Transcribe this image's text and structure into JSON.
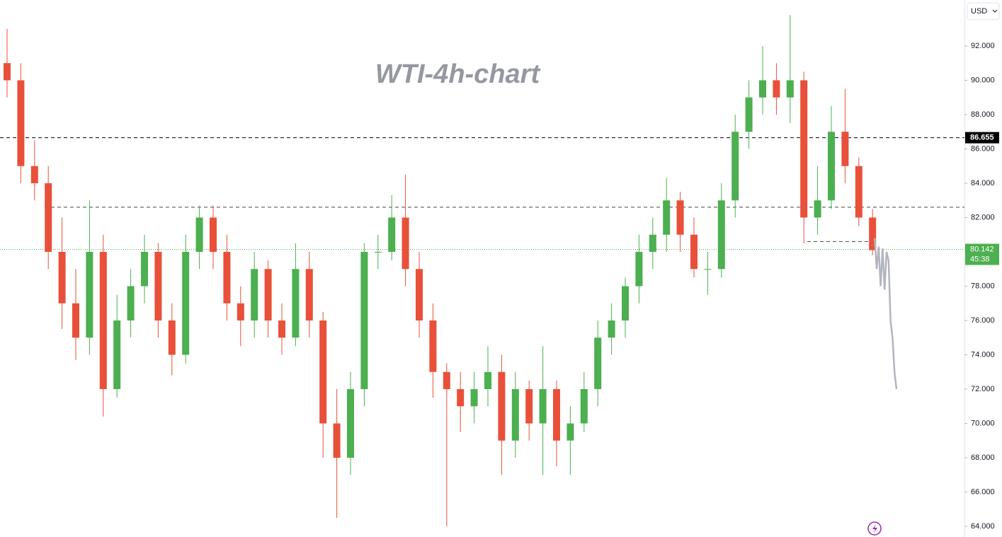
{
  "chart_data": {
    "type": "candlestick",
    "title": "WTI-4h-chart",
    "currency": "USD",
    "candles": {
      "open": [
        91,
        90,
        85,
        84,
        80,
        77,
        75,
        80,
        72,
        76,
        78,
        80,
        76,
        74,
        80,
        82,
        80,
        77,
        76,
        79,
        76,
        75,
        79,
        76,
        70,
        68,
        72,
        80,
        80,
        82,
        79,
        76,
        73,
        72,
        71,
        72,
        73,
        69,
        72,
        70,
        72,
        69,
        70,
        72,
        75,
        76,
        78,
        80,
        81,
        83,
        81,
        79,
        79,
        83,
        87,
        89,
        90,
        89,
        90,
        82,
        83,
        87,
        85,
        82
      ],
      "high": [
        93,
        91,
        86.5,
        85,
        82,
        79,
        83,
        81,
        77.5,
        79,
        81,
        80.5,
        77,
        81,
        82.7,
        82.7,
        81,
        78,
        80,
        79.5,
        77,
        80.5,
        80,
        76.5,
        72,
        73,
        80.5,
        81,
        83.3,
        84.5,
        80,
        77,
        73.5,
        73,
        73,
        74.5,
        74,
        73,
        72.5,
        74.5,
        72.5,
        71,
        73,
        76,
        77,
        78.5,
        81,
        82,
        84.3,
        83.5,
        82,
        80,
        84,
        88,
        90,
        92,
        91,
        93.8,
        90.5,
        85,
        88.5,
        89.5,
        85.5,
        82.5
      ],
      "low": [
        89,
        84,
        83,
        79,
        75.5,
        73.7,
        74,
        70.4,
        71.5,
        75,
        77,
        75,
        72.8,
        73.5,
        79,
        79,
        76,
        74.5,
        75,
        75,
        74,
        74.5,
        75,
        68,
        64.5,
        67,
        71,
        79,
        79.5,
        78,
        75,
        71.5,
        64,
        69.5,
        70,
        71,
        67,
        68,
        69,
        67,
        67.5,
        67,
        69.5,
        71,
        74,
        75,
        77,
        79,
        80,
        80,
        78.5,
        77.5,
        78.5,
        82,
        86,
        88,
        88,
        87.5,
        80.5,
        81,
        82.5,
        84,
        81.5,
        79.8
      ],
      "close": [
        90,
        85,
        84,
        80,
        77,
        75,
        80,
        72,
        76,
        78,
        80,
        76,
        74,
        80,
        82,
        80,
        77,
        76,
        79,
        76,
        75,
        79,
        76,
        70,
        68,
        72,
        80,
        80,
        82,
        79,
        76,
        73,
        72,
        71,
        72,
        73,
        69,
        72,
        70,
        72,
        69,
        70,
        72,
        75,
        76,
        78,
        80,
        81,
        83,
        81,
        79,
        79,
        83,
        87,
        89,
        90,
        89,
        90,
        82,
        83,
        87,
        85,
        82,
        80.1
      ],
      "up_color": "#4caf50",
      "down_color": "#e8503a"
    },
    "projection": {
      "color": "#b2b5be",
      "values": [
        80.8,
        79,
        80.3,
        78,
        80.2,
        77.8,
        80,
        79.5,
        76,
        75,
        73,
        72
      ]
    },
    "price_lines": [
      {
        "value": 86.655,
        "label": "86.655",
        "color": "#000000",
        "style": "dashed"
      },
      {
        "value": 82.6,
        "color": "#444444",
        "style": "dashed"
      },
      {
        "value": 80.6,
        "color": "#444444",
        "style": "dashed"
      }
    ],
    "current_price": {
      "value": 80.142,
      "label": "80.142",
      "countdown": "45:38",
      "color": "#4caf50"
    },
    "ylim": [
      63.38,
      94.68
    ],
    "yticks": [
      {
        "value": 64,
        "label": "64.000"
      },
      {
        "value": 66,
        "label": "66.000"
      },
      {
        "value": 68,
        "label": "68.000"
      },
      {
        "value": 70,
        "label": "70.000"
      },
      {
        "value": 72,
        "label": "72.000"
      },
      {
        "value": 74,
        "label": "74.000"
      },
      {
        "value": 76,
        "label": "76.000"
      },
      {
        "value": 78,
        "label": "78.000"
      },
      {
        "value": 80,
        "label": "80.000"
      },
      {
        "value": 82,
        "label": "82.000"
      },
      {
        "value": 84,
        "label": "84.000"
      },
      {
        "value": 86,
        "label": "86.000"
      },
      {
        "value": 88,
        "label": "88.000"
      },
      {
        "value": 90,
        "label": "90.000"
      },
      {
        "value": 92,
        "label": "92.000"
      }
    ]
  }
}
